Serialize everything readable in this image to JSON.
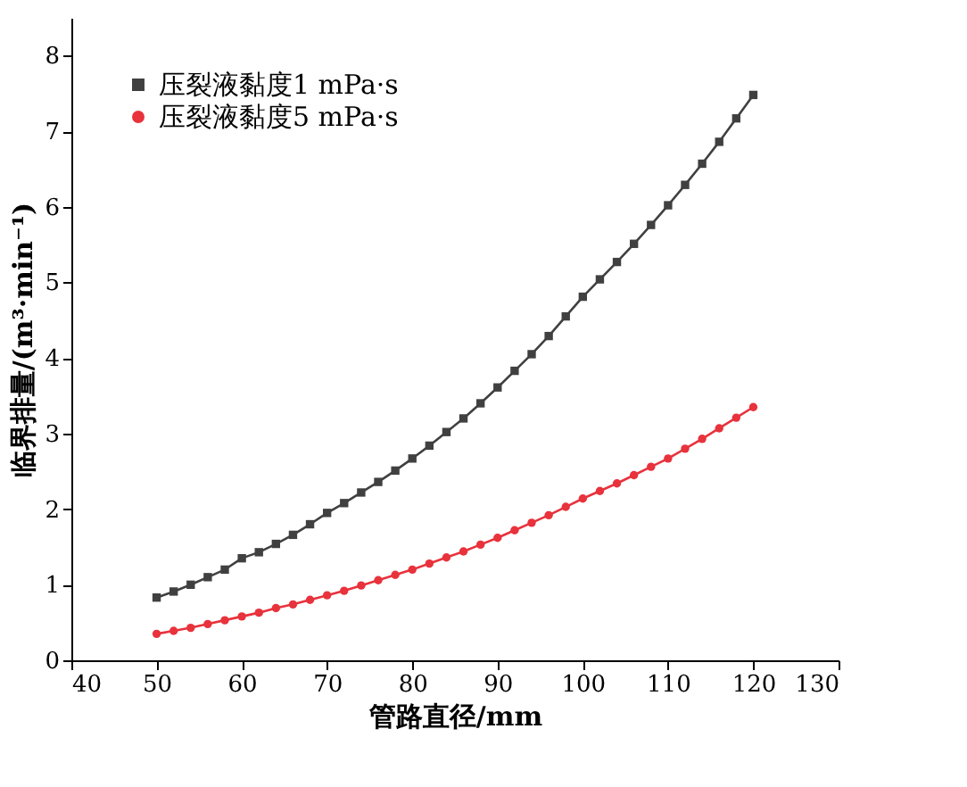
{
  "chart_data": {
    "type": "line",
    "xlabel": "管路直径/mm",
    "ylabel": "临界排量/(m³·min⁻¹)",
    "xlim": [
      40,
      130
    ],
    "xticks": [
      40,
      50,
      60,
      70,
      80,
      90,
      100,
      110,
      120,
      130
    ],
    "ylim": [
      0,
      8.5
    ],
    "yticks": [
      0,
      1,
      2,
      3,
      4,
      5,
      6,
      7,
      8
    ],
    "grid": false,
    "legend": "top left",
    "line_style": "solid",
    "x": [
      50,
      52,
      54,
      56,
      58,
      60,
      62,
      64,
      66,
      68,
      70,
      72,
      74,
      76,
      78,
      80,
      82,
      84,
      86,
      88,
      90,
      92,
      94,
      96,
      98,
      100,
      102,
      104,
      106,
      108,
      110,
      112,
      114,
      116,
      118,
      120
    ],
    "series": [
      {
        "name": "压裂液黏度1 mPa·s",
        "color": "#404040",
        "marker": "square",
        "values": [
          0.83,
          0.91,
          1.0,
          1.1,
          1.2,
          1.35,
          1.43,
          1.54,
          1.66,
          1.8,
          1.95,
          2.08,
          2.22,
          2.36,
          2.51,
          2.67,
          2.84,
          3.02,
          3.2,
          3.4,
          3.61,
          3.83,
          4.05,
          4.29,
          4.55,
          4.81,
          5.04,
          5.27,
          5.51,
          5.76,
          6.02,
          6.29,
          6.57,
          6.86,
          7.17,
          7.48
        ]
      },
      {
        "name": "压裂液黏度5 mPa·s",
        "color": "#e8323c",
        "marker": "circle",
        "values": [
          0.35,
          0.39,
          0.43,
          0.48,
          0.53,
          0.58,
          0.63,
          0.69,
          0.74,
          0.8,
          0.86,
          0.92,
          0.99,
          1.06,
          1.13,
          1.2,
          1.28,
          1.36,
          1.44,
          1.53,
          1.62,
          1.72,
          1.82,
          1.92,
          2.03,
          2.14,
          2.24,
          2.34,
          2.45,
          2.56,
          2.67,
          2.8,
          2.93,
          3.07,
          3.21,
          3.35
        ]
      }
    ]
  }
}
